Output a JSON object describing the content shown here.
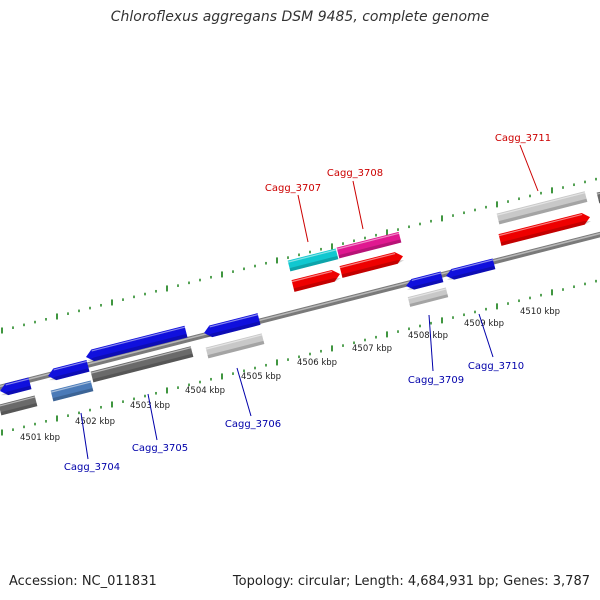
{
  "title": "Chloroflexus aggregans DSM 9485, complete genome",
  "footer": {
    "accession": "Accession: NC_011831",
    "topology": "Topology: circular; Length: 4,684,931 bp; Genes: 3,787"
  },
  "colors": {
    "backbone": "#8c8c8c",
    "tick": "#2a8a2a",
    "forward_label": "#cc0000",
    "reverse_label": "#0000aa",
    "cds_blue": "#1010dd",
    "cds_red": "#ee0000",
    "cds_cyan": "#10c8d0",
    "cds_magenta": "#e01890",
    "cds_grey": "#c8c8c8",
    "cds_darkgrey": "#6a6a6a",
    "cds_steel": "#4a7ab8"
  },
  "scale_labels": [
    "4501 kbp",
    "4502 kbp",
    "4503 kbp",
    "4504 kbp",
    "4505 kbp",
    "4506 kbp",
    "4507 kbp",
    "4508 kbp",
    "4509 kbp",
    "4510 kbp"
  ],
  "genes": [
    {
      "label": "Cagg_3704",
      "strand": "reverse"
    },
    {
      "label": "Cagg_3705",
      "strand": "reverse"
    },
    {
      "label": "Cagg_3706",
      "strand": "reverse"
    },
    {
      "label": "Cagg_3707",
      "strand": "forward"
    },
    {
      "label": "Cagg_3708",
      "strand": "forward"
    },
    {
      "label": "Cagg_3709",
      "strand": "reverse"
    },
    {
      "label": "Cagg_3710",
      "strand": "reverse"
    },
    {
      "label": "Cagg_3711",
      "strand": "forward"
    }
  ]
}
